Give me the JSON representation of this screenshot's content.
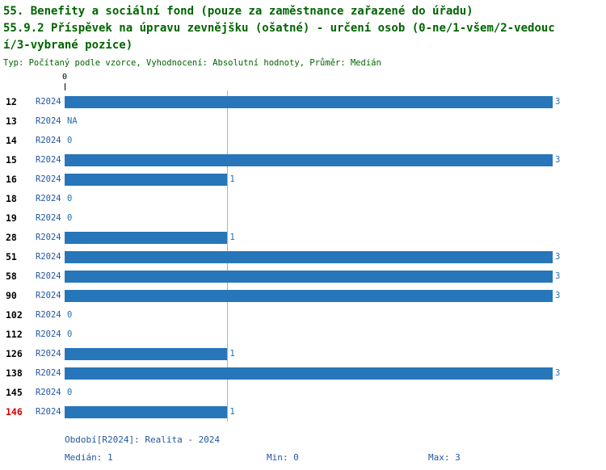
{
  "colors": {
    "bar": "#2776b9",
    "title_green": "#006400",
    "series_blue": "#2456a4",
    "value_blue": "#2470ad",
    "highlight_red": "#cc0000",
    "median_line": "#8fb8dc"
  },
  "header": {
    "title_line1": "55. Benefity a sociální fond (pouze za zaměstnance zařazené do úřadu)",
    "title_line2": "55.9.2 Příspěvek na úpravu zevnějšku (ošatné) - určení osob (0-ne/1-všem/2-vedouc",
    "title_line3": "í/3-vybrané pozice)",
    "subtitle": "Typ: Počítaný podle vzorce, Vyhodnocení: Absolutní hodnoty, Průměr: Medián"
  },
  "chart_data": {
    "type": "bar",
    "orientation": "horizontal",
    "xlim": [
      0,
      3
    ],
    "axis_top_label": "0",
    "median_value": 1,
    "legend": "none",
    "grid": "median-reference-line-only",
    "series_label": "R2024",
    "rows": [
      {
        "id": "12",
        "series": "R2024",
        "value": 3,
        "value_label": "3"
      },
      {
        "id": "13",
        "series": "R2024",
        "value": null,
        "value_label": "NA"
      },
      {
        "id": "14",
        "series": "R2024",
        "value": 0,
        "value_label": "0"
      },
      {
        "id": "15",
        "series": "R2024",
        "value": 3,
        "value_label": "3"
      },
      {
        "id": "16",
        "series": "R2024",
        "value": 1,
        "value_label": "1"
      },
      {
        "id": "18",
        "series": "R2024",
        "value": 0,
        "value_label": "0"
      },
      {
        "id": "19",
        "series": "R2024",
        "value": 0,
        "value_label": "0"
      },
      {
        "id": "28",
        "series": "R2024",
        "value": 1,
        "value_label": "1"
      },
      {
        "id": "51",
        "series": "R2024",
        "value": 3,
        "value_label": "3"
      },
      {
        "id": "58",
        "series": "R2024",
        "value": 3,
        "value_label": "3"
      },
      {
        "id": "90",
        "series": "R2024",
        "value": 3,
        "value_label": "3"
      },
      {
        "id": "102",
        "series": "R2024",
        "value": 0,
        "value_label": "0"
      },
      {
        "id": "112",
        "series": "R2024",
        "value": 0,
        "value_label": "0"
      },
      {
        "id": "126",
        "series": "R2024",
        "value": 1,
        "value_label": "1"
      },
      {
        "id": "138",
        "series": "R2024",
        "value": 3,
        "value_label": "3"
      },
      {
        "id": "145",
        "series": "R2024",
        "value": 0,
        "value_label": "0"
      },
      {
        "id": "146",
        "series": "R2024",
        "value": 1,
        "value_label": "1",
        "highlight": true
      }
    ]
  },
  "footer": {
    "period_label": "Období[R2024]: Realita - 2024",
    "median_label": "Medián: 1",
    "min_label": "Min: 0",
    "max_label": "Max: 3"
  }
}
